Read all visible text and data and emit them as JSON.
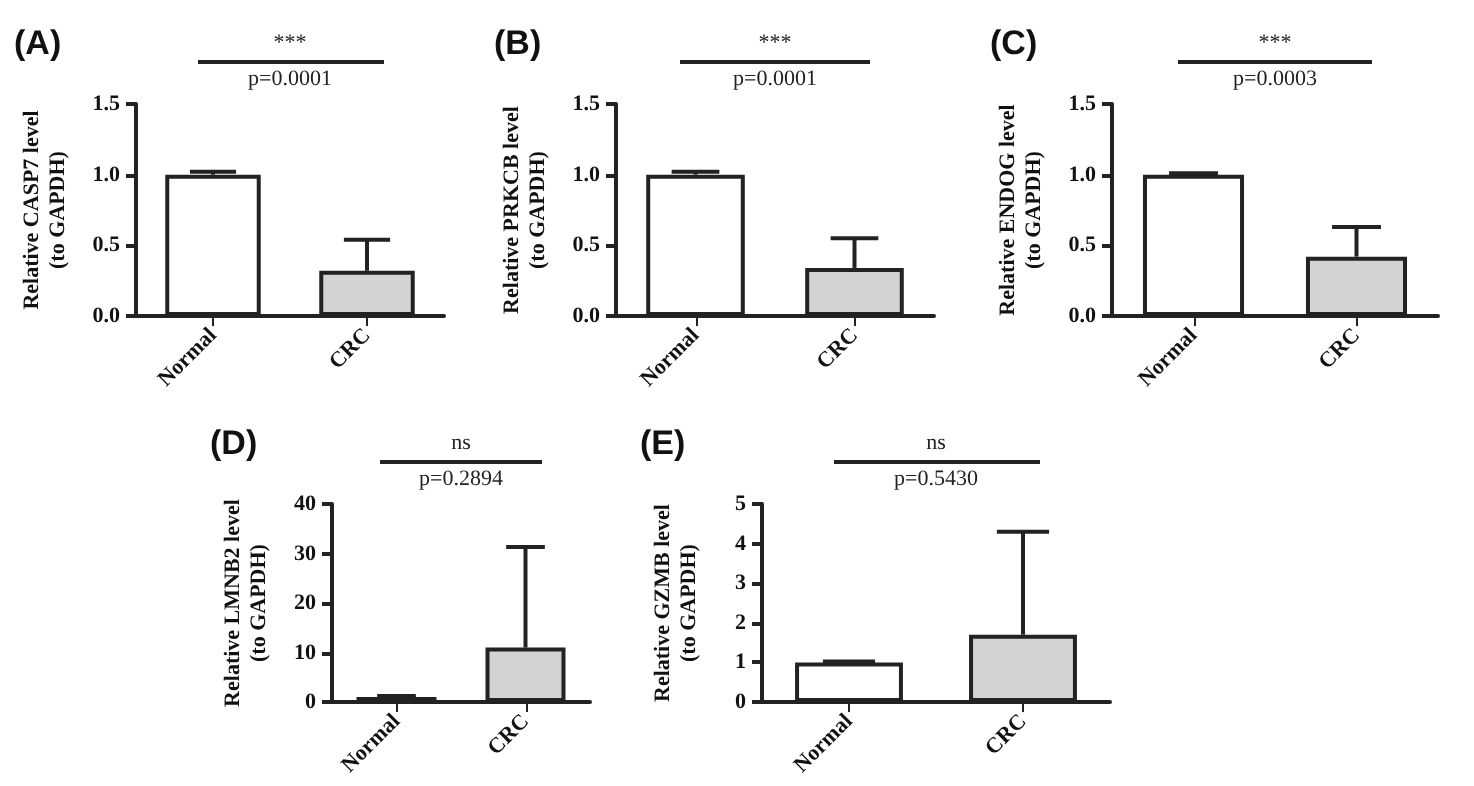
{
  "chart_data": [
    {
      "type": "bar",
      "title": "(A)",
      "ylabel": "Relative CASP7 level\n(to GAPDH)",
      "categories": [
        "Normal",
        "CRC"
      ],
      "values": [
        1.0,
        0.32
      ],
      "colors": [
        "#ffffff",
        "#d3d3d3"
      ],
      "errors": [
        [
          1.0,
          1.02
        ],
        [
          0.32,
          0.54
        ]
      ],
      "ylim": [
        0,
        1.5
      ],
      "yticks": [
        {
          "value": 0,
          "label": "0.0"
        },
        {
          "value": 0.5,
          "label": "0.5"
        },
        {
          "value": 1,
          "label": "1.0"
        },
        {
          "value": 1.5,
          "label": "1.5"
        }
      ],
      "annotations": [
        "***",
        "p=0.0001"
      ]
    },
    {
      "type": "bar",
      "title": "(B)",
      "ylabel": "Relative PRKCB level\n(to GAPDH)",
      "categories": [
        "Normal",
        "CRC"
      ],
      "values": [
        1.0,
        0.34
      ],
      "colors": [
        "#ffffff",
        "#d3d3d3"
      ],
      "errors": [
        [
          1.0,
          1.02
        ],
        [
          0.34,
          0.55
        ]
      ],
      "ylim": [
        0,
        1.5
      ],
      "yticks": [
        {
          "value": 0,
          "label": "0.0"
        },
        {
          "value": 0.5,
          "label": "0.5"
        },
        {
          "value": 1,
          "label": "1.0"
        },
        {
          "value": 1.5,
          "label": "1.5"
        }
      ],
      "annotations": [
        "***",
        "p=0.0001"
      ]
    },
    {
      "type": "bar",
      "title": "(C)",
      "ylabel": "Relative ENDOG level\n(to GAPDH)",
      "categories": [
        "Normal",
        "CRC"
      ],
      "values": [
        1.0,
        0.42
      ],
      "colors": [
        "#ffffff",
        "#d3d3d3"
      ],
      "errors": [
        [
          1.0,
          1.01
        ],
        [
          0.42,
          0.63
        ]
      ],
      "ylim": [
        0,
        1.5
      ],
      "yticks": [
        {
          "value": 0,
          "label": "0.0"
        },
        {
          "value": 0.5,
          "label": "0.5"
        },
        {
          "value": 1,
          "label": "1.0"
        },
        {
          "value": 1.5,
          "label": "1.5"
        }
      ],
      "annotations": [
        "***",
        "p=0.0003"
      ]
    },
    {
      "type": "bar",
      "title": "(D)",
      "ylabel": "Relative LMNB2 level\n(to GAPDH)",
      "categories": [
        "Normal",
        "CRC"
      ],
      "values": [
        1.0,
        11.0
      ],
      "colors": [
        "#ffffff",
        "#d3d3d3"
      ],
      "errors": [
        [
          1.0,
          1.2
        ],
        [
          11.0,
          31.3
        ]
      ],
      "ylim": [
        0,
        40
      ],
      "yticks": [
        0,
        10,
        20,
        30,
        40
      ],
      "annotations": [
        "ns",
        "p=0.2894"
      ]
    },
    {
      "type": "bar",
      "title": "(E)",
      "ylabel": "Relative GZMB level\n(to GAPDH)",
      "categories": [
        "Normal",
        "CRC"
      ],
      "values": [
        1.0,
        1.7
      ],
      "colors": [
        "#ffffff",
        "#d3d3d3"
      ],
      "errors": [
        [
          1.0,
          1.02
        ],
        [
          1.7,
          4.3
        ]
      ],
      "ylim": [
        0,
        5
      ],
      "yticks": [
        0,
        1,
        2,
        3,
        4,
        5
      ],
      "annotations": [
        "ns",
        "p=0.5430"
      ]
    }
  ]
}
